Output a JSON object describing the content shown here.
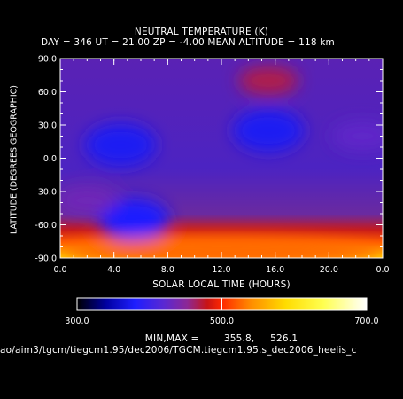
{
  "chart_data": {
    "type": "heatmap",
    "title": "NEUTRAL TEMPERATURE (K)",
    "subtitle": "DAY = 346   UT = 21.00   ZP =    -4.00   MEAN ALTITUDE = 118 km",
    "xlabel": "SOLAR LOCAL TIME (HOURS)",
    "ylabel": "LATITUDE (DEGREES GEOGRAPHIC)",
    "xlim": [
      0,
      24
    ],
    "ylim": [
      -90,
      90
    ],
    "x_tick_labels": [
      "0.0",
      "4.0",
      "8.0",
      "12.0",
      "16.0",
      "20.0",
      "0.0"
    ],
    "y_tick_labels": [
      "90.0",
      "60.0",
      "30.0",
      "0.0",
      "-30.0",
      "-60.0",
      "-90.0"
    ],
    "colorbar": {
      "range": [
        300,
        700
      ],
      "tick_labels": [
        "300.0",
        "500.0",
        "700.0"
      ]
    },
    "minmax_label": "MIN,MAX =",
    "min_value": "355.8,",
    "max_value": "526.1",
    "features": [
      {
        "kind": "cold",
        "x": 4.5,
        "lat": 12,
        "value": 375
      },
      {
        "kind": "cold",
        "x": 15.5,
        "lat": 25,
        "value": 375
      },
      {
        "kind": "cold",
        "x": 5.5,
        "lat": -55,
        "value": 380
      },
      {
        "kind": "warm",
        "x": 15.5,
        "lat": 70,
        "value": 470
      },
      {
        "kind": "warm",
        "x": 22.5,
        "lat": 20,
        "value": 425
      },
      {
        "kind": "warm",
        "x": 2.0,
        "lat": -38,
        "value": 435
      },
      {
        "kind": "hot",
        "x": 12,
        "lat": -85,
        "value": 526
      }
    ],
    "grid": false
  },
  "footer_path": "ao/aim3/tgcm/tiegcm1.95/dec2006/TGCM.tiegcm1.95.s_dec2006_heelis_c"
}
